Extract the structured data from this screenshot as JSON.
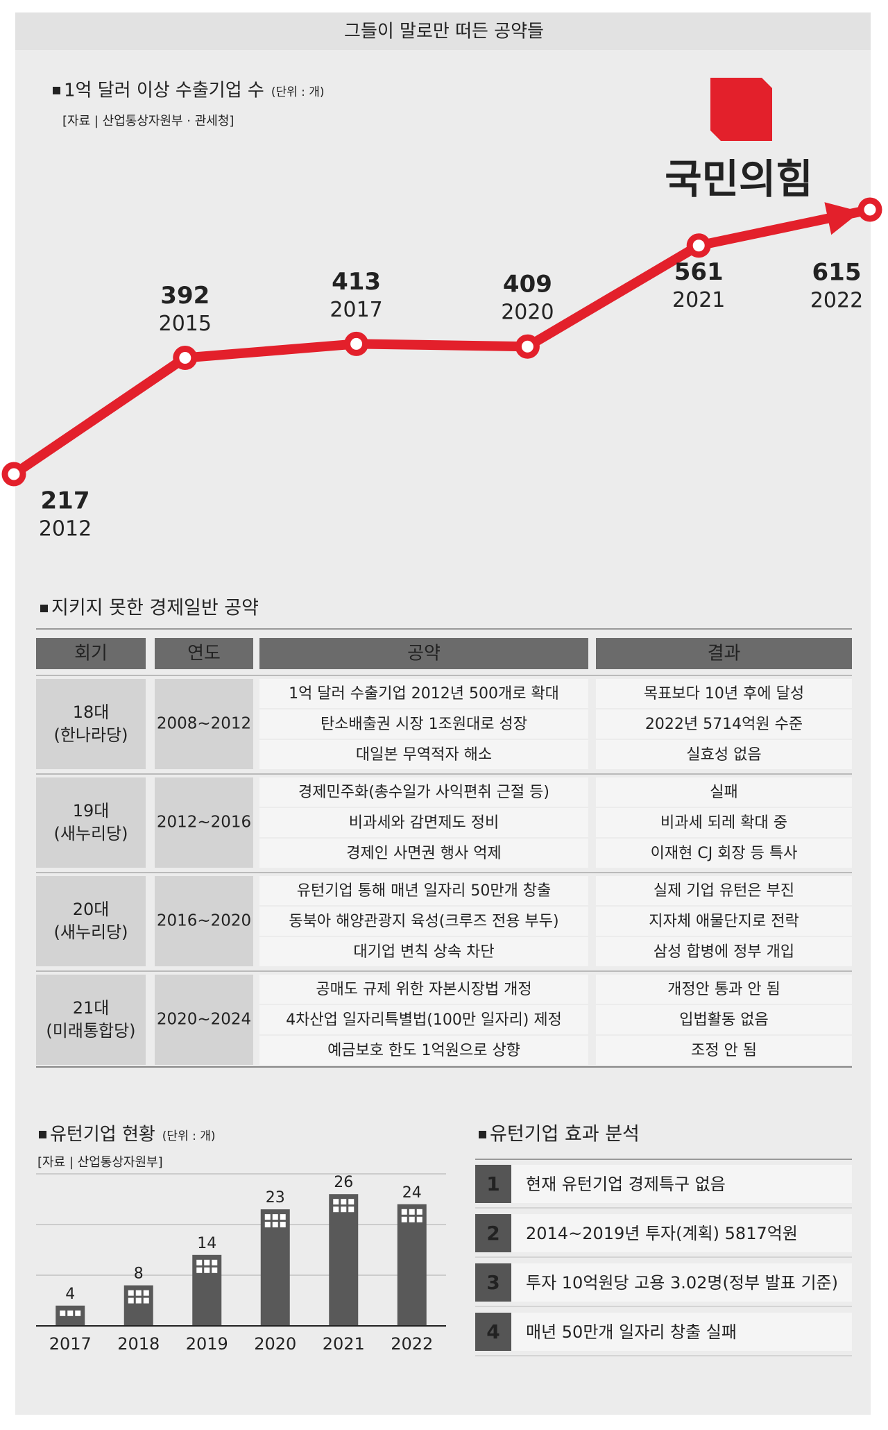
{
  "header": {
    "title": "그들이 말로만 떠든 공약들",
    "logo": "국민의힘"
  },
  "chart_data": [
    {
      "type": "line",
      "title": "1억 달러 이상 수출기업 수",
      "unit": "(단위 : 개)",
      "source": "[자료 | 산업통상자원부 · 관세청]",
      "categories": [
        "2012",
        "2015",
        "2017",
        "2020",
        "2021",
        "2022"
      ],
      "values": [
        217,
        392,
        413,
        409,
        561,
        615
      ],
      "color": "#e3202b"
    },
    {
      "type": "bar",
      "title": "유턴기업 현황",
      "unit": "(단위 : 개)",
      "source": "[자료 | 산업통상자원부]",
      "categories": [
        "2017",
        "2018",
        "2019",
        "2020",
        "2021",
        "2022"
      ],
      "values": [
        4,
        8,
        14,
        23,
        26,
        24
      ],
      "color": "#595959",
      "ylim": [
        0,
        30
      ]
    }
  ],
  "table": {
    "title": "지키지 못한 경제일반 공약",
    "columns": [
      "회기",
      "연도",
      "공약",
      "결과"
    ],
    "groups": [
      {
        "session": "18대",
        "party": "(한나라당)",
        "period": "2008~2012",
        "pledges": [
          "1억 달러 수출기업 2012년 500개로 확대",
          "탄소배출권 시장 1조원대로 성장",
          "대일본 무역적자 해소"
        ],
        "results": [
          "목표보다 10년 후에 달성",
          "2022년 5714억원 수준",
          "실효성 없음"
        ]
      },
      {
        "session": "19대",
        "party": "(새누리당)",
        "period": "2012~2016",
        "pledges": [
          "경제민주화(총수일가 사익편취 근절 등)",
          "비과세와 감면제도 정비",
          "경제인 사면권 행사 억제"
        ],
        "results": [
          "실패",
          "비과세 되레 확대 중",
          "이재현 CJ 회장 등 특사"
        ]
      },
      {
        "session": "20대",
        "party": "(새누리당)",
        "period": "2016~2020",
        "pledges": [
          "유턴기업 통해 매년 일자리 50만개 창출",
          "동북아 해양관광지 육성(크루즈 전용 부두)",
          "대기업 변칙 상속 차단"
        ],
        "results": [
          "실제 기업 유턴은 부진",
          "지자체 애물단지로 전락",
          "삼성 합병에 정부 개입"
        ]
      },
      {
        "session": "21대",
        "party": "(미래통합당)",
        "period": "2020~2024",
        "pledges": [
          "공매도 규제 위한 자본시장법 개정",
          "4차산업 일자리특별법(100만 일자리) 제정",
          "예금보호 한도 1억원으로 상향"
        ],
        "results": [
          "개정안 통과 안 됨",
          "입법활동 없음",
          "조정 안 됨"
        ]
      }
    ]
  },
  "analysis": {
    "title": "유턴기업 효과 분석",
    "items": [
      {
        "number": "1",
        "text": "현재 유턴기업 경제특구 없음"
      },
      {
        "number": "2",
        "text": "2014~2019년 투자(계획) 5817억원"
      },
      {
        "number": "3",
        "text": "투자 10억원당 고용 3.02명(정부 발표 기준)"
      },
      {
        "number": "4",
        "text": "매년 50만개 일자리 창출 실패"
      }
    ]
  }
}
